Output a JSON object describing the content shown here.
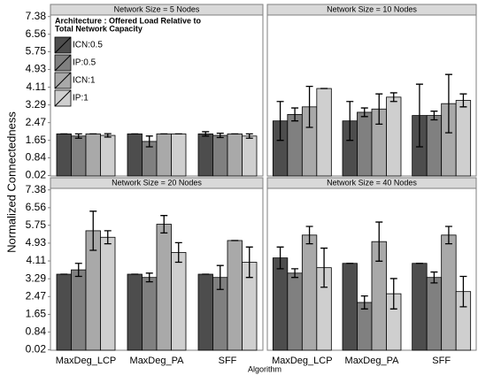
{
  "chart_data": {
    "type": "bar",
    "x_label": "Algorithm",
    "y_label": "Normalized Connectedness",
    "legend_title": [
      "Architecture : Offered Load Relative to",
      "Total Network Capacity"
    ],
    "categories": [
      "MaxDeg_LCP",
      "MaxDeg_PA",
      "SFF"
    ],
    "ylim": [
      0,
      7.45
    ],
    "yticks": [
      0.02,
      0.84,
      1.65,
      2.47,
      3.29,
      4.11,
      4.93,
      5.75,
      6.56,
      7.38
    ],
    "series": [
      {
        "name": "ICN:0.5",
        "color": "#4d4d4d"
      },
      {
        "name": "IP:0.5",
        "color": "#808080"
      },
      {
        "name": "ICN:1",
        "color": "#a9a9a9"
      },
      {
        "name": "IP:1",
        "color": "#cfcfcf"
      }
    ],
    "panels": [
      {
        "title": "Network Size = 5 Nodes",
        "series": [
          {
            "values": [
              1.95,
              1.95,
              1.95
            ],
            "errors": [
              0,
              0,
              0.1
            ]
          },
          {
            "values": [
              1.85,
              1.6,
              1.88
            ],
            "errors": [
              0.1,
              0.25,
              0.1
            ]
          },
          {
            "values": [
              1.95,
              1.95,
              1.95
            ],
            "errors": [
              0,
              0,
              0
            ]
          },
          {
            "values": [
              1.88,
              1.95,
              1.85
            ],
            "errors": [
              0.08,
              0,
              0.1
            ]
          }
        ]
      },
      {
        "title": "Network Size = 10 Nodes",
        "series": [
          {
            "values": [
              2.55,
              2.55,
              2.8
            ],
            "errors": [
              0.9,
              0.9,
              1.45
            ]
          },
          {
            "values": [
              2.85,
              2.95,
              2.8
            ],
            "errors": [
              0.3,
              0.2,
              0.2
            ]
          },
          {
            "values": [
              3.2,
              3.1,
              3.35
            ],
            "errors": [
              0.95,
              0.7,
              1.35
            ]
          },
          {
            "values": [
              4.05,
              3.65,
              3.5
            ],
            "errors": [
              0,
              0.2,
              0.3
            ]
          }
        ]
      },
      {
        "title": "Network Size = 20 Nodes",
        "series": [
          {
            "values": [
              3.5,
              3.5,
              3.5
            ],
            "errors": [
              0,
              0,
              0
            ]
          },
          {
            "values": [
              3.7,
              3.35,
              3.35
            ],
            "errors": [
              0.3,
              0.2,
              0.55
            ]
          },
          {
            "values": [
              5.5,
              5.8,
              5.05
            ],
            "errors": [
              0.9,
              0.4,
              0
            ]
          },
          {
            "values": [
              5.2,
              4.5,
              4.05
            ],
            "errors": [
              0.3,
              0.45,
              0.7
            ]
          }
        ]
      },
      {
        "title": "Network Size = 40 Nodes",
        "series": [
          {
            "values": [
              4.25,
              4.0,
              4.0
            ],
            "errors": [
              0.5,
              0,
              0
            ]
          },
          {
            "values": [
              3.55,
              2.2,
              3.35
            ],
            "errors": [
              0.2,
              0.3,
              0.25
            ]
          },
          {
            "values": [
              5.3,
              5.0,
              5.3
            ],
            "errors": [
              0.4,
              0.9,
              0.4
            ]
          },
          {
            "values": [
              3.8,
              2.6,
              2.7
            ],
            "errors": [
              0.9,
              0.7,
              0.7
            ]
          }
        ]
      }
    ]
  }
}
